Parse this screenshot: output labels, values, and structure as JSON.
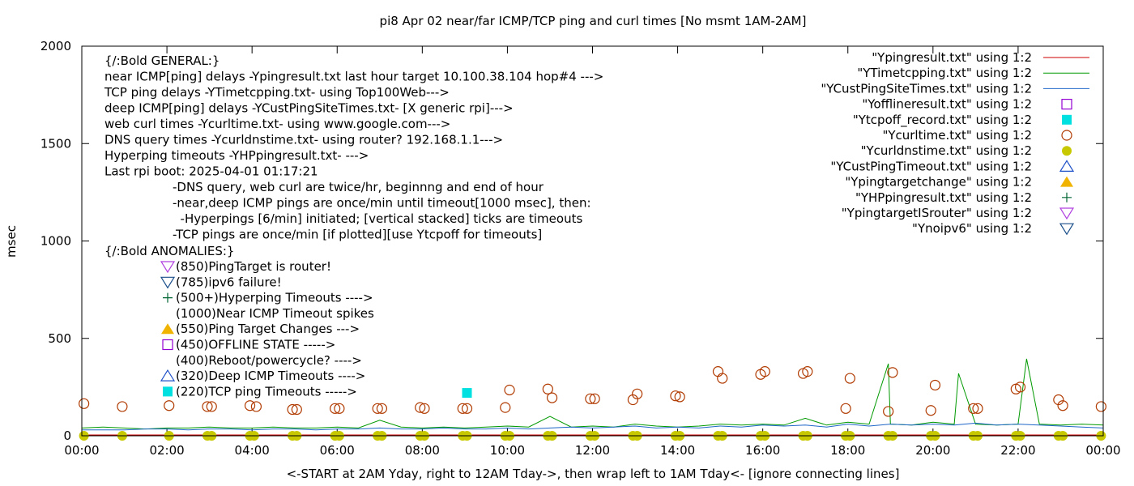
{
  "chart_data": {
    "type": "line",
    "title": "pi8 Apr 02  near/far ICMP/TCP ping and curl times [No msmt 1AM-2AM]",
    "xlabel": "<-START at 2AM Yday, right to 12AM Tday->, then wrap left to 1AM Tday<- [ignore connecting lines]",
    "ylabel": "msec",
    "xlim": [
      0,
      24
    ],
    "ylim": [
      0,
      2000
    ],
    "grid": false,
    "legend_position": "top-right",
    "x_ticks": [
      "00:00",
      "02:00",
      "04:00",
      "06:00",
      "08:00",
      "10:00",
      "12:00",
      "14:00",
      "16:00",
      "18:00",
      "20:00",
      "22:00",
      "00:00"
    ],
    "y_ticks": [
      0,
      500,
      1000,
      1500,
      2000
    ],
    "legend": [
      {
        "label": "\"Ypingresult.txt\" using 1:2",
        "color": "#cc0000",
        "style": "line"
      },
      {
        "label": "\"YTimetcpping.txt\" using 1:2",
        "color": "#009900",
        "style": "line"
      },
      {
        "label": "\"YCustPingSiteTimes.txt\" using 1:2",
        "color": "#1e66c8",
        "style": "line"
      },
      {
        "label": "\"Yofflineresult.txt\" using 1:2",
        "color": "#9400d3",
        "style": "open-square"
      },
      {
        "label": "\"Ytcpoff_record.txt\" using 1:2",
        "color": "#00e0e0",
        "style": "filled-square"
      },
      {
        "label": "\"Ycurltime.txt\" using 1:2",
        "color": "#b03a00",
        "style": "open-circle"
      },
      {
        "label": "\"Ycurldnstime.txt\" using 1:2",
        "color": "#c8c800",
        "style": "filled-circle"
      },
      {
        "label": "\"YCustPingTimeout.txt\" using 1:2",
        "color": "#1e50c8",
        "style": "open-triangle"
      },
      {
        "label": "\"Ypingtargetchange\" using 1:2",
        "color": "#f0b400",
        "style": "filled-triangle"
      },
      {
        "label": "\"YHPpingresult.txt\" using 1:2",
        "color": "#006633",
        "style": "plus"
      },
      {
        "label": "\"YpingtargetISrouter\" using 1:2",
        "color": "#b040e0",
        "style": "open-down-triangle"
      },
      {
        "label": "\"Ynoipv6\" using 1:2",
        "color": "#1a4f8a",
        "style": "open-down-triangle"
      }
    ],
    "annotation_lines": [
      "{/:Bold GENERAL:}",
      "near ICMP[ping] delays -Ypingresult.txt last hour target 10.100.38.104 hop#4 --->",
      "TCP ping delays -YTimetcpping.txt- using Top100Web--->",
      "deep ICMP[ping] delays -YCustPingSiteTimes.txt- [X generic rpi]--->",
      "web curl times -Ycurltime.txt- using www.google.com--->",
      "DNS query times -Ycurldnstime.txt- using router? 192.168.1.1--->",
      "Hyperping timeouts -YHPpingresult.txt- --->",
      "Last rpi boot: 2025-04-01 01:17:21"
    ],
    "notes": [
      "-DNS query, web curl are twice/hr, beginnng and end of hour",
      "-near,deep ICMP pings are once/min until timeout[1000 msec], then:",
      "  -Hyperpings [6/min] initiated; [vertical stacked] ticks are timeouts",
      "-TCP pings are once/min [if plotted][use Ytcpoff for timeouts]"
    ],
    "anomalies_title": "{/:Bold ANOMALIES:}",
    "anomalies": [
      {
        "text": "(850)PingTarget is router!",
        "marker": "open-down-triangle",
        "color": "#b040e0"
      },
      {
        "text": "(785)ipv6 failure!",
        "marker": "open-down-triangle",
        "color": "#1a4f8a"
      },
      {
        "text": "(500+)Hyperping Timeouts ---->",
        "marker": "plus",
        "color": "#006633"
      },
      {
        "text": "(1000)Near ICMP Timeout spikes",
        "marker": "none",
        "color": "#000000"
      },
      {
        "text": "(550)Ping Target Changes --->",
        "marker": "filled-triangle",
        "color": "#f0b400"
      },
      {
        "text": "(450)OFFLINE STATE ----->",
        "marker": "open-square",
        "color": "#9400d3"
      },
      {
        "text": "(400)Reboot/powercycle? ---->",
        "marker": "none",
        "color": "#000000"
      },
      {
        "text": "(320)Deep ICMP Timeouts ---->",
        "marker": "open-triangle",
        "color": "#1e50c8"
      },
      {
        "text": "(220)TCP ping Timeouts ----->",
        "marker": "filled-square",
        "color": "#00e0e0"
      }
    ],
    "series": [
      {
        "name": "\"Ycurltime.txt\" using 1:2",
        "x": [
          0.05,
          0.95,
          2.05,
          2.95,
          3.05,
          3.95,
          4.1,
          4.95,
          5.05,
          5.95,
          6.05,
          6.95,
          7.05,
          7.95,
          8.05,
          8.95,
          9.05,
          9.95,
          10.05,
          10.95,
          11.05,
          11.95,
          12.05,
          12.95,
          13.05,
          13.95,
          14.05,
          14.95,
          15.05,
          15.95,
          16.05,
          16.95,
          17.05,
          17.95,
          18.05,
          18.95,
          19.05,
          19.95,
          20.05,
          20.95,
          21.05,
          21.95,
          22.05,
          22.95,
          23.05,
          23.95
        ],
        "y": [
          165,
          150,
          155,
          150,
          150,
          155,
          150,
          135,
          135,
          140,
          140,
          140,
          140,
          145,
          140,
          140,
          140,
          145,
          235,
          240,
          195,
          190,
          190,
          185,
          215,
          205,
          200,
          330,
          295,
          315,
          330,
          320,
          330,
          140,
          295,
          125,
          325,
          130,
          260,
          140,
          140,
          240,
          250,
          185,
          155,
          150
        ]
      },
      {
        "name": "\"Ytcpoff_record.txt\" using 1:2",
        "x": [
          9.05
        ],
        "y": [
          220
        ]
      },
      {
        "name": "\"Ycurldnstime.txt\" using 1:2",
        "x": [
          0.05,
          0.95,
          2.05,
          2.95,
          3.05,
          3.95,
          4.05,
          4.95,
          5.05,
          5.95,
          6.05,
          6.95,
          7.05,
          7.95,
          8.05,
          8.95,
          9.05,
          9.95,
          10.05,
          10.95,
          11.05,
          11.95,
          12.05,
          12.95,
          13.05,
          13.95,
          14.05,
          14.95,
          15.05,
          15.95,
          16.05,
          16.95,
          17.05,
          17.95,
          18.05,
          18.95,
          19.05,
          19.95,
          20.05,
          20.95,
          21.05,
          21.95,
          22.05,
          22.95,
          23.05,
          23.95
        ],
        "y": [
          0,
          0,
          0,
          0,
          0,
          0,
          0,
          0,
          0,
          0,
          0,
          0,
          0,
          0,
          0,
          0,
          0,
          0,
          0,
          0,
          0,
          0,
          0,
          0,
          0,
          0,
          0,
          0,
          0,
          0,
          0,
          0,
          0,
          0,
          0,
          0,
          0,
          0,
          0,
          0,
          0,
          0,
          0,
          0,
          0,
          0
        ]
      },
      {
        "name": "\"Ypingresult.txt\" using 1:2",
        "x": [
          0,
          24
        ],
        "y": [
          4,
          4
        ]
      },
      {
        "name": "\"YTimetcpping.txt\" using 1:2",
        "x": [
          0,
          0.5,
          1,
          1.5,
          2,
          2.5,
          3,
          3.5,
          4,
          4.5,
          5,
          5.5,
          6,
          6.5,
          7,
          7.5,
          8,
          8.5,
          9,
          9.5,
          10,
          10.5,
          11,
          11.5,
          12,
          12.5,
          13,
          13.5,
          14,
          14.5,
          15,
          15.5,
          16,
          16.5,
          17,
          17.5,
          18,
          18.5,
          18.95,
          19,
          19.5,
          20,
          20.5,
          20.6,
          21,
          21.5,
          22,
          22.2,
          22.5,
          23,
          23.5,
          24
        ],
        "y": [
          40,
          45,
          40,
          35,
          40,
          40,
          45,
          40,
          40,
          45,
          40,
          40,
          45,
          40,
          80,
          45,
          40,
          45,
          40,
          45,
          50,
          45,
          100,
          45,
          50,
          45,
          60,
          50,
          45,
          50,
          60,
          55,
          60,
          55,
          90,
          55,
          70,
          60,
          370,
          60,
          55,
          70,
          60,
          320,
          60,
          55,
          60,
          395,
          60,
          55,
          60,
          55
        ]
      },
      {
        "name": "\"YCustPingSiteTimes.txt\" using 1:2",
        "x": [
          0,
          0.5,
          1,
          1.5,
          2,
          2.5,
          3,
          3.5,
          4,
          4.5,
          5,
          5.5,
          6,
          6.5,
          7,
          7.5,
          8,
          8.5,
          9,
          9.5,
          10,
          10.5,
          11,
          11.5,
          12,
          12.5,
          13,
          13.5,
          14,
          14.5,
          15,
          15.5,
          16,
          16.5,
          17,
          17.5,
          18,
          18.5,
          19,
          19.5,
          20,
          20.5,
          21,
          21.5,
          22,
          22.5,
          23,
          23.5,
          24
        ],
        "y": [
          30,
          30,
          30,
          35,
          35,
          30,
          35,
          35,
          30,
          35,
          35,
          30,
          35,
          35,
          40,
          35,
          35,
          40,
          35,
          35,
          40,
          35,
          40,
          45,
          40,
          45,
          50,
          40,
          45,
          40,
          50,
          45,
          55,
          50,
          55,
          45,
          60,
          50,
          60,
          55,
          60,
          55,
          65,
          55,
          60,
          55,
          50,
          45,
          40
        ]
      }
    ]
  }
}
